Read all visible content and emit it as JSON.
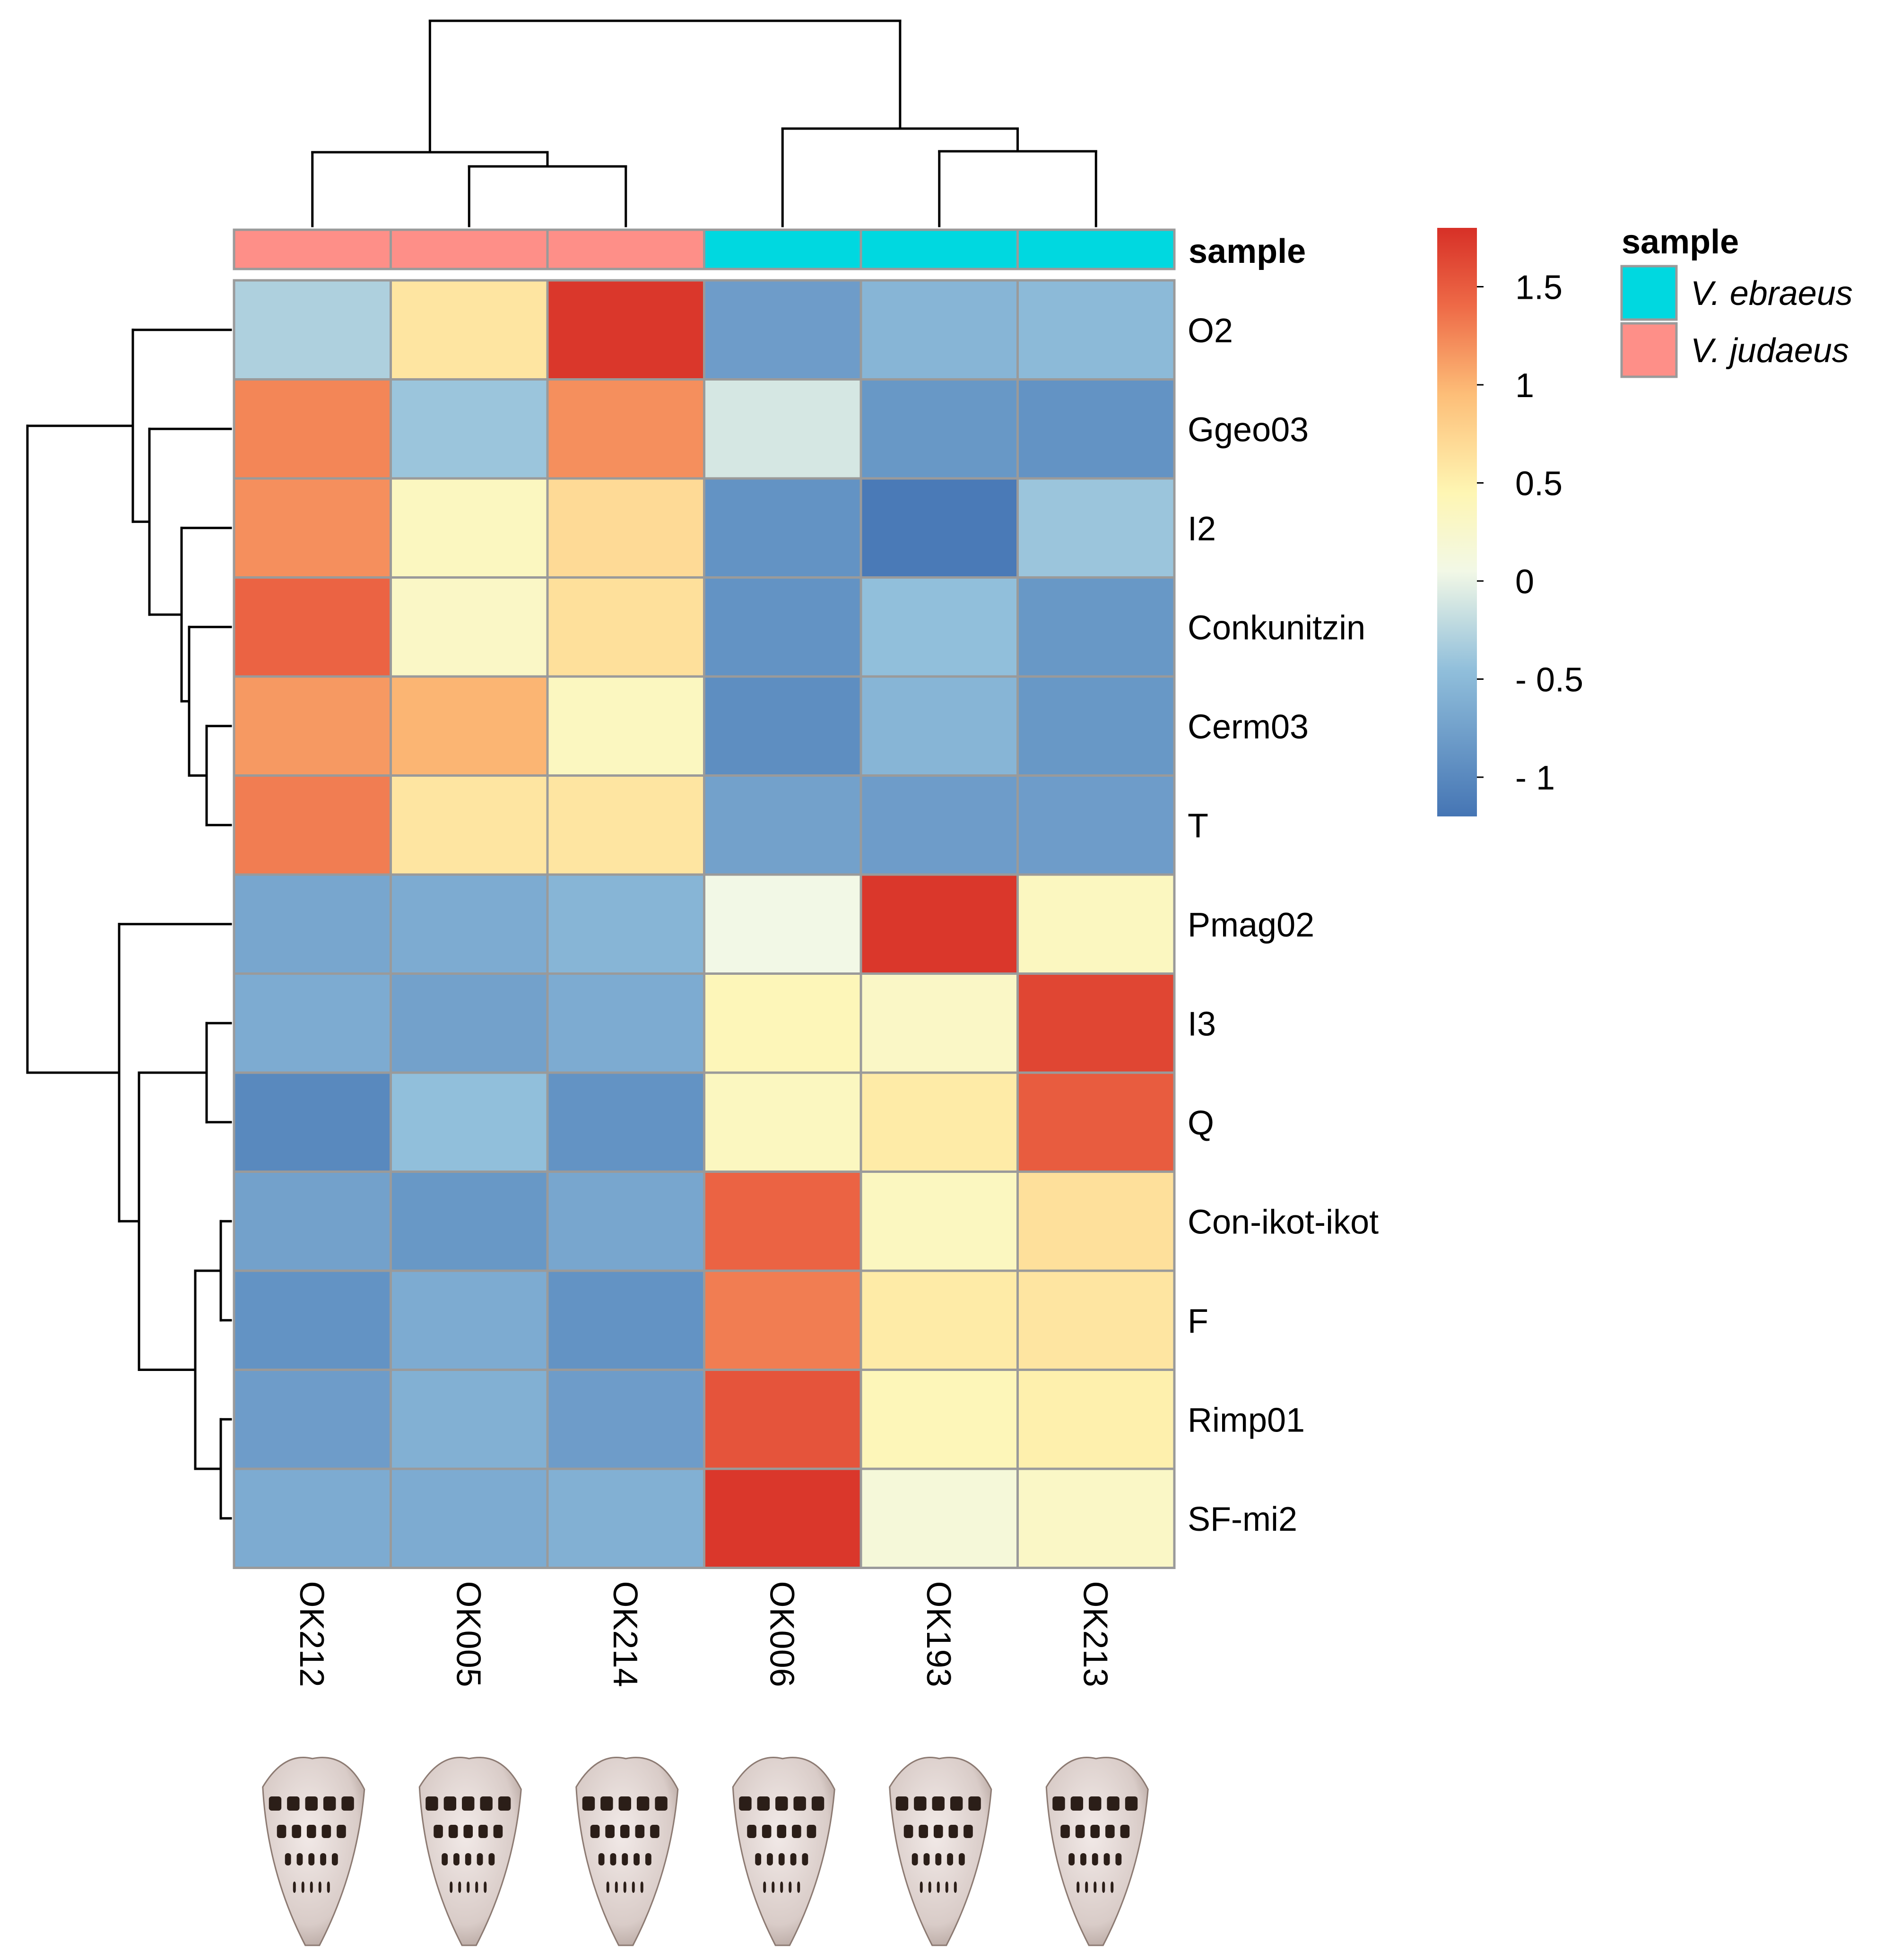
{
  "chart_data": {
    "type": "heatmap",
    "title": "",
    "columns": [
      "OK212",
      "OK005",
      "OK214",
      "OK006",
      "OK193",
      "OK213"
    ],
    "rows": [
      "O2",
      "Ggeo03",
      "I2",
      "Conkunitzin",
      "Cerm03",
      "T",
      "Pmag02",
      "I3",
      "Q",
      "Con-ikot-ikot",
      "F",
      "Rimp01",
      "SF-mi2"
    ],
    "values": [
      [
        -0.3,
        0.6,
        1.75,
        -0.8,
        -0.55,
        -0.5
      ],
      [
        1.25,
        -0.4,
        1.2,
        -0.1,
        -0.85,
        -0.9
      ],
      [
        1.2,
        0.35,
        0.7,
        -0.9,
        -1.15,
        -0.4
      ],
      [
        1.45,
        0.3,
        0.65,
        -0.9,
        -0.45,
        -0.85
      ],
      [
        1.15,
        1.0,
        0.35,
        -0.95,
        -0.55,
        -0.85
      ],
      [
        1.3,
        0.6,
        0.6,
        -0.75,
        -0.8,
        -0.8
      ],
      [
        -0.7,
        -0.65,
        -0.55,
        0.05,
        1.75,
        0.35
      ],
      [
        -0.65,
        -0.75,
        -0.65,
        0.4,
        0.3,
        1.65
      ],
      [
        -1.0,
        -0.45,
        -0.9,
        0.35,
        0.55,
        1.5
      ],
      [
        -0.75,
        -0.85,
        -0.7,
        1.45,
        0.35,
        0.65
      ],
      [
        -0.9,
        -0.65,
        -0.9,
        1.3,
        0.55,
        0.6
      ],
      [
        -0.8,
        -0.6,
        -0.8,
        1.55,
        0.4,
        0.5
      ],
      [
        -0.65,
        -0.65,
        -0.6,
        1.75,
        0.15,
        0.3
      ]
    ],
    "color_scale": {
      "min": -1.2,
      "max": 1.8,
      "stops": [
        {
          "value": -1.2,
          "color": "#4575B4"
        },
        {
          "value": -0.45,
          "color": "#91BFDB"
        },
        {
          "value": 0.05,
          "color": "#F2F8E6"
        },
        {
          "value": 0.45,
          "color": "#FEF6B3"
        },
        {
          "value": 0.95,
          "color": "#FDBE78"
        },
        {
          "value": 1.4,
          "color": "#EE6A47"
        },
        {
          "value": 1.8,
          "color": "#D73027"
        }
      ],
      "ticks": [
        1.5,
        1,
        0.5,
        0,
        -0.5,
        -1
      ],
      "tick_labels": [
        "1.5",
        "1",
        "0.5",
        "0",
        "- 0.5",
        "- 1"
      ]
    },
    "annotation": {
      "title": "sample",
      "column_groups": [
        "V. judaeus",
        "V. judaeus",
        "V. judaeus",
        "V. ebraeus",
        "V. ebraeus",
        "V. ebraeus"
      ],
      "legend": [
        {
          "label": "V. ebraeus",
          "color": "#00D8E0"
        },
        {
          "label": "V. judaeus",
          "color": "#FE8F88"
        }
      ]
    },
    "column_dendrogram": [
      [
        "OK005",
        "OK214"
      ],
      [
        "OK212",
        [
          "OK005",
          "OK214"
        ]
      ],
      [
        "OK193",
        "OK213"
      ],
      [
        "OK006",
        [
          "OK193",
          "OK213"
        ]
      ],
      "root"
    ],
    "row_dendrogram": "hierarchical clustering of toxin superfamilies",
    "column_images": [
      "cone shell OK212",
      "cone shell OK005",
      "cone shell OK214",
      "cone shell OK006",
      "cone shell OK193",
      "cone shell OK213"
    ]
  }
}
